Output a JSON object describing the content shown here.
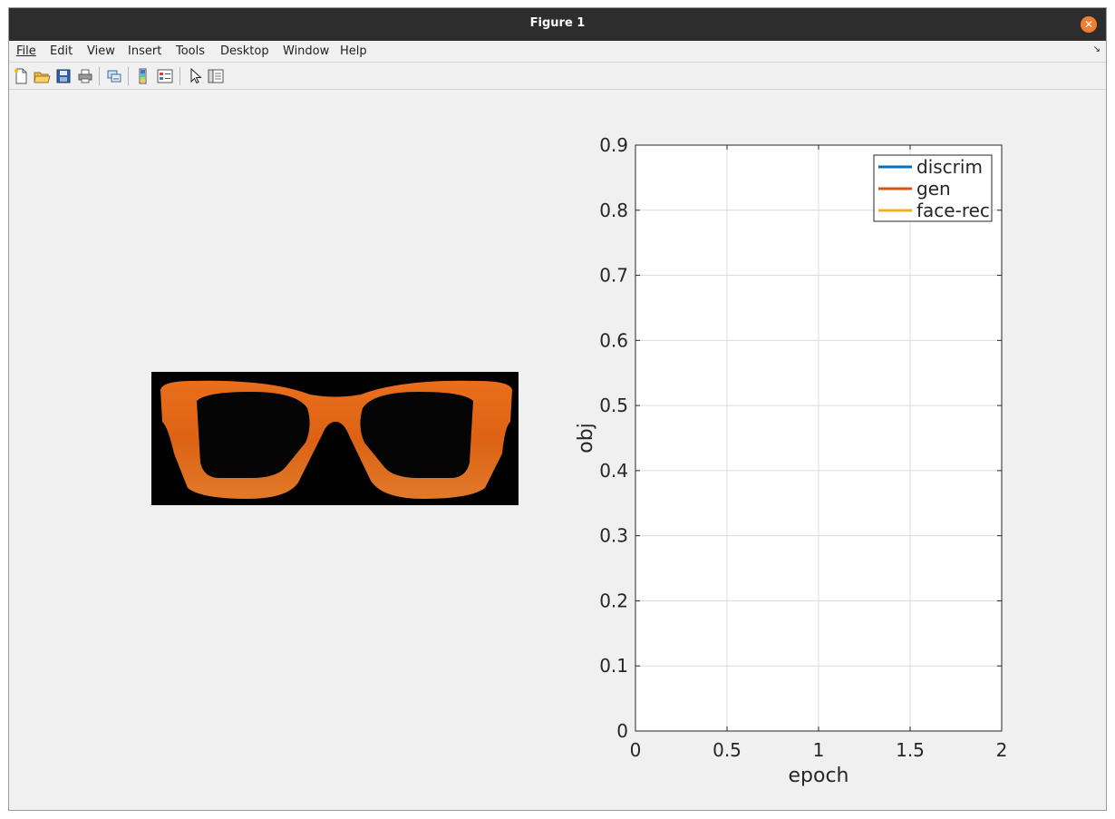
{
  "window": {
    "title": "Figure 1"
  },
  "menu": [
    "File",
    "Edit",
    "View",
    "Insert",
    "Tools",
    "Desktop",
    "Window",
    "Help"
  ],
  "colors": {
    "discrim": "#0072bd",
    "gen": "#d95319",
    "face_rec": "#edb120",
    "titlebar": "#2d2d2d",
    "close": "#f37e2f"
  },
  "toolbar_icons": [
    "new-figure-icon",
    "open-file-icon",
    "save-icon",
    "print-icon",
    "link-plot-icon",
    "colorbar-icon",
    "legend-icon",
    "pointer-icon",
    "property-editor-icon"
  ],
  "chart_data": {
    "type": "line",
    "xlabel": "epoch",
    "ylabel": "obj",
    "xlim": [
      0,
      2
    ],
    "ylim": [
      0,
      0.9
    ],
    "xticks": [
      "0",
      "0.5",
      "1",
      "1.5",
      "2"
    ],
    "yticks": [
      "0",
      "0.1",
      "0.2",
      "0.3",
      "0.4",
      "0.5",
      "0.6",
      "0.7",
      "0.8",
      "0.9"
    ],
    "grid": true,
    "legend_position": "top-right",
    "series": [
      {
        "name": "discrim",
        "color": "#0072bd",
        "x": [],
        "y": []
      },
      {
        "name": "gen",
        "color": "#d95319",
        "x": [],
        "y": []
      },
      {
        "name": "face-rec",
        "color": "#edb120",
        "x": [],
        "y": []
      }
    ]
  }
}
